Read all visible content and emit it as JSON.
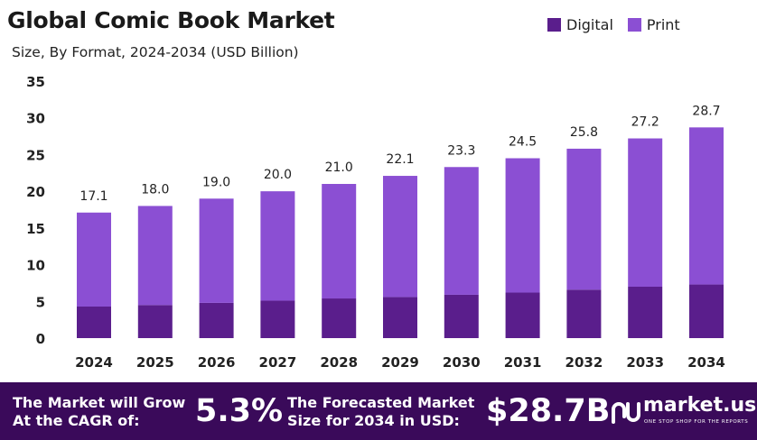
{
  "title": "Global Comic Book Market",
  "subtitle": "Size, By Format, 2024-2034 (USD Billion)",
  "legend": [
    {
      "label": "Digital",
      "color": "#5a1e8c"
    },
    {
      "label": "Print",
      "color": "#8b4fd3"
    }
  ],
  "chart_data": {
    "type": "bar",
    "stacked": true,
    "categories": [
      "2024",
      "2025",
      "2026",
      "2027",
      "2028",
      "2029",
      "2030",
      "2031",
      "2032",
      "2033",
      "2034"
    ],
    "series": [
      {
        "name": "Digital",
        "color": "#5a1e8c",
        "values": [
          4.3,
          4.5,
          4.8,
          5.1,
          5.4,
          5.6,
          5.9,
          6.2,
          6.6,
          7.0,
          7.3
        ]
      },
      {
        "name": "Print",
        "color": "#8b4fd3",
        "values": [
          12.8,
          13.5,
          14.2,
          14.9,
          15.6,
          16.5,
          17.4,
          18.3,
          19.2,
          20.2,
          21.4
        ]
      }
    ],
    "totals": [
      17.1,
      18.0,
      19.0,
      20.0,
      21.0,
      22.1,
      23.3,
      24.5,
      25.8,
      27.2,
      28.7
    ],
    "total_labels": [
      "17.1",
      "18.0",
      "19.0",
      "20.0",
      "21.0",
      "22.1",
      "23.3",
      "24.5",
      "25.8",
      "27.2",
      "28.7"
    ],
    "ylim": [
      0,
      35
    ],
    "yticks": [
      "0",
      "5",
      "10",
      "15",
      "20",
      "25",
      "30",
      "35"
    ],
    "grid": false,
    "legend_position": "top-right"
  },
  "footer": {
    "cagr_text_line1": "The Market will Grow",
    "cagr_text_line2": "At the CAGR of:",
    "cagr_value": "5.3%",
    "forecast_text_line1": "The Forecasted Market",
    "forecast_text_line2": "Size for 2034 in USD:",
    "forecast_value": "$28.7B",
    "brand_name": "market.us",
    "brand_tagline": "ONE STOP SHOP FOR THE REPORTS",
    "background": "#3a0a5a"
  }
}
